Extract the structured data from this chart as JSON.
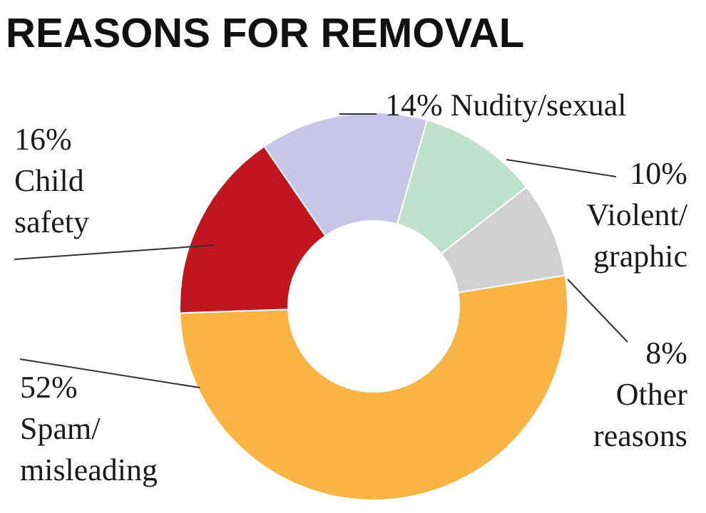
{
  "chart_data": {
    "type": "donut",
    "title": "REASONS FOR REMOVAL",
    "categories": [
      "Nudity/sexual",
      "Violent/graphic",
      "Other reasons",
      "Spam/misleading",
      "Child safety"
    ],
    "values": [
      14,
      10,
      8,
      52,
      16
    ],
    "value_labels": [
      "14%",
      "10%",
      "8%",
      "52%",
      "16%"
    ],
    "colors": [
      "#c8c6e6",
      "#bfe0cc",
      "#d0d0d0",
      "#f8b444",
      "#c0161f"
    ]
  }
}
